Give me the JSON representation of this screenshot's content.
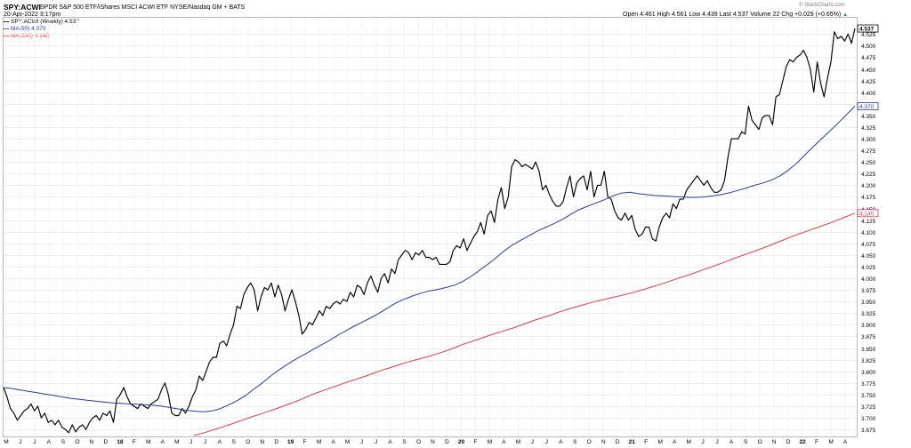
{
  "header": {
    "symbol": "SPY:ACWI",
    "description": "SPDR S&P 500 ETF/iShares MSCI ACWI ETF NYSE/Nasdaq GM + BATS",
    "date": "20-Apr-2022 3:17pm",
    "ohlc": "Open 4.461 High 4.561 Low 4.439 Last 4.537 Volume 22 Chg +0.029 (+0.65%)",
    "change_arrow": "▲",
    "watermark": "© StockCharts.com"
  },
  "legend": [
    {
      "label": "SPY:ACWI (Weekly) 4.537",
      "color": "#000000"
    },
    {
      "label": "MA(50) 4.370",
      "color": "#2b3a8f"
    },
    {
      "label": "MA(200) 4.140",
      "color": "#d23c4c"
    }
  ],
  "chart_data": {
    "type": "line",
    "ylim": [
      3.66,
      4.56
    ],
    "y_ticks": [
      3.675,
      3.7,
      3.725,
      3.75,
      3.775,
      3.8,
      3.825,
      3.85,
      3.875,
      3.9,
      3.925,
      3.95,
      3.975,
      4.0,
      4.025,
      4.05,
      4.075,
      4.1,
      4.125,
      4.15,
      4.175,
      4.2,
      4.225,
      4.25,
      4.275,
      4.3,
      4.325,
      4.35,
      4.375,
      4.4,
      4.425,
      4.45,
      4.475,
      4.5,
      4.525
    ],
    "y_tick_labels": [
      "3.675",
      "3.700",
      "3.725",
      "3.750",
      "3.775",
      "3.800",
      "3.825",
      "3.850",
      "3.875",
      "3.900",
      "3.925",
      "3.950",
      "3.975",
      "4.000",
      "4.025",
      "4.050",
      "4.075",
      "4.100",
      "4.125",
      "4.150",
      "4.175",
      "4.200",
      "4.225",
      "4.250",
      "4.275",
      "4.300",
      "4.325",
      "4.350",
      "4.375",
      "4.400",
      "4.425",
      "4.450",
      "4.475",
      "4.500",
      "4.525"
    ],
    "x_tick_labels": [
      "M",
      "J",
      "J",
      "A",
      "S",
      "O",
      "N",
      "D",
      "18",
      "F",
      "M",
      "A",
      "M",
      "J",
      "J",
      "A",
      "S",
      "O",
      "N",
      "D",
      "19",
      "F",
      "M",
      "A",
      "M",
      "J",
      "J",
      "A",
      "S",
      "O",
      "N",
      "D",
      "20",
      "F",
      "M",
      "A",
      "M",
      "J",
      "J",
      "A",
      "S",
      "O",
      "N",
      "D",
      "21",
      "F",
      "M",
      "A",
      "M",
      "J",
      "J",
      "A",
      "S",
      "O",
      "N",
      "D",
      "22",
      "F",
      "M",
      "A"
    ],
    "last_value_labels": [
      {
        "text": "4.537",
        "value": 4.537,
        "color": "#000000"
      },
      {
        "text": "4.370",
        "value": 4.37,
        "color": "#2b3a8f"
      },
      {
        "text": "4.140",
        "value": 4.14,
        "color": "#d23c4c"
      }
    ],
    "series": [
      {
        "name": "SPY:ACWI (Weekly)",
        "color": "#000000",
        "values": [
          3.765,
          3.745,
          3.72,
          3.71,
          3.695,
          3.705,
          3.715,
          3.72,
          3.73,
          3.715,
          3.725,
          3.7,
          3.71,
          3.69,
          3.695,
          3.685,
          3.695,
          3.68,
          3.675,
          3.668,
          3.685,
          3.67,
          3.68,
          3.685,
          3.675,
          3.69,
          3.7,
          3.705,
          3.695,
          3.71,
          3.705,
          3.715,
          3.69,
          3.74,
          3.75,
          3.765,
          3.745,
          3.73,
          3.725,
          3.72,
          3.73,
          3.725,
          3.72,
          3.73,
          3.735,
          3.74,
          3.76,
          3.775,
          3.75,
          3.71,
          3.705,
          3.705,
          3.72,
          3.71,
          3.725,
          3.745,
          3.76,
          3.79,
          3.78,
          3.8,
          3.82,
          3.83,
          3.83,
          3.86,
          3.865,
          3.855,
          3.88,
          3.9,
          3.94,
          3.935,
          3.965,
          3.98,
          3.99,
          3.975,
          3.93,
          3.96,
          3.98,
          3.975,
          3.99,
          3.96,
          3.985,
          3.965,
          3.93,
          3.955,
          3.975,
          3.95,
          3.92,
          3.88,
          3.89,
          3.905,
          3.9,
          3.915,
          3.93,
          3.92,
          3.94,
          3.935,
          3.945,
          3.95,
          3.945,
          3.955,
          3.95,
          3.97,
          3.96,
          3.985,
          3.98,
          3.965,
          3.99,
          4.005,
          3.985,
          3.97,
          4.0,
          4.01,
          3.99,
          4.02,
          4.01,
          4.04,
          4.05,
          4.06,
          4.055,
          4.04,
          4.055,
          4.05,
          4.06,
          4.045,
          4.045,
          4.04,
          4.045,
          4.03,
          4.03,
          4.03,
          4.035,
          4.06,
          4.07,
          4.065,
          4.085,
          4.06,
          4.075,
          4.09,
          4.1,
          4.12,
          4.095,
          4.135,
          4.145,
          4.12,
          4.17,
          4.195,
          4.15,
          4.175,
          4.24,
          4.255,
          4.25,
          4.24,
          4.245,
          4.24,
          4.235,
          4.25,
          4.23,
          4.19,
          4.2,
          4.18,
          4.165,
          4.155,
          4.155,
          4.165,
          4.195,
          4.22,
          4.175,
          4.205,
          4.215,
          4.22,
          4.19,
          4.23,
          4.175,
          4.2,
          4.2,
          4.23,
          4.175,
          4.17,
          4.145,
          4.13,
          4.125,
          4.14,
          4.125,
          4.135,
          4.105,
          4.09,
          4.095,
          4.11,
          4.11,
          4.085,
          4.08,
          4.11,
          4.13,
          4.14,
          4.13,
          4.16,
          4.15,
          4.17,
          4.17,
          4.19,
          4.2,
          4.21,
          4.22,
          4.21,
          4.2,
          4.21,
          4.195,
          4.185,
          4.185,
          4.19,
          4.21,
          4.26,
          4.3,
          4.3,
          4.3,
          4.315,
          4.31,
          4.37,
          4.34,
          4.33,
          4.32,
          4.345,
          4.35,
          4.35,
          4.33,
          4.39,
          4.395,
          4.425,
          4.455,
          4.47,
          4.465,
          4.475,
          4.48,
          4.49,
          4.475,
          4.45,
          4.4,
          4.465,
          4.42,
          4.39,
          4.43,
          4.465,
          4.53,
          4.515,
          4.52,
          4.51,
          4.525,
          4.505,
          4.537
        ]
      },
      {
        "name": "MA(50)",
        "color": "#2b3a8f",
        "values": [
          3.765,
          3.763,
          3.76,
          3.757,
          3.754,
          3.751,
          3.748,
          3.745,
          3.742,
          3.74,
          3.738,
          3.736,
          3.734,
          3.732,
          3.731,
          3.73,
          3.729,
          3.728,
          3.727,
          3.725,
          3.722,
          3.719,
          3.716,
          3.714,
          3.713,
          3.715,
          3.72,
          3.728,
          3.737,
          3.748,
          3.762,
          3.775,
          3.79,
          3.803,
          3.815,
          3.826,
          3.836,
          3.846,
          3.856,
          3.866,
          3.877,
          3.887,
          3.897,
          3.906,
          3.915,
          3.925,
          3.936,
          3.947,
          3.955,
          3.962,
          3.968,
          3.973,
          3.976,
          3.98,
          3.985,
          3.993,
          4.004,
          4.017,
          4.03,
          4.044,
          4.059,
          4.072,
          4.082,
          4.092,
          4.102,
          4.11,
          4.118,
          4.127,
          4.138,
          4.148,
          4.155,
          4.162,
          4.169,
          4.177,
          4.183,
          4.185,
          4.182,
          4.18,
          4.178,
          4.177,
          4.176,
          4.175,
          4.174,
          4.174,
          4.175,
          4.177,
          4.18,
          4.184,
          4.189,
          4.194,
          4.2,
          4.205,
          4.211,
          4.22,
          4.232,
          4.247,
          4.265,
          4.283,
          4.3,
          4.317,
          4.334,
          4.352,
          4.37
        ]
      },
      {
        "name": "MA(200)",
        "color": "#d23c4c",
        "values": [
          3.655,
          3.662,
          3.669,
          3.677,
          3.685,
          3.694,
          3.703,
          3.711,
          3.72,
          3.729,
          3.739,
          3.75,
          3.759,
          3.768,
          3.777,
          3.785,
          3.794,
          3.803,
          3.811,
          3.819,
          3.826,
          3.833,
          3.841,
          3.85,
          3.86,
          3.868,
          3.877,
          3.885,
          3.893,
          3.902,
          3.911,
          3.919,
          3.928,
          3.936,
          3.943,
          3.95,
          3.956,
          3.962,
          3.968,
          3.975,
          3.983,
          3.991,
          4.0,
          4.008,
          4.017,
          4.026,
          4.035,
          4.045,
          4.054,
          4.063,
          4.073,
          4.083,
          4.093,
          4.102,
          4.111,
          4.12,
          4.13,
          4.14
        ]
      }
    ]
  }
}
